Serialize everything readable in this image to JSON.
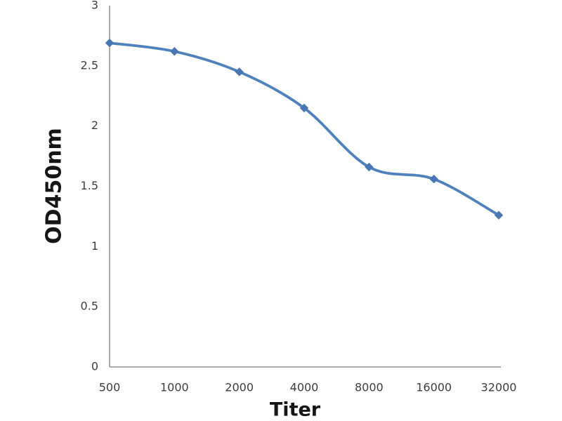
{
  "page": {
    "background": "#ffffff"
  },
  "chart_data": {
    "type": "line",
    "title": "",
    "xlabel": "Titer",
    "ylabel": "OD450nm",
    "categories": [
      "500",
      "1000",
      "2000",
      "4000",
      "8000",
      "16000",
      "32000"
    ],
    "series": [
      {
        "name": "OD450nm vs Titer",
        "values": [
          2.69,
          2.62,
          2.45,
          2.15,
          1.66,
          1.56,
          1.26
        ]
      }
    ],
    "ylim": [
      0,
      3
    ],
    "ytick_labels": [
      "0",
      "0.5",
      "1",
      "1.5",
      "2",
      "2.5",
      "3"
    ],
    "ytick_values": [
      0,
      0.5,
      1,
      1.5,
      2,
      2.5,
      3
    ],
    "grid": false,
    "legend": "none",
    "smooth": true,
    "marker": "diamond",
    "colors": {
      "line": "#4f81bd",
      "marker": "#4a76b4",
      "axis": "#8e8e8e",
      "tick_text": "#3d3d3d",
      "label_text": "#161616"
    }
  }
}
